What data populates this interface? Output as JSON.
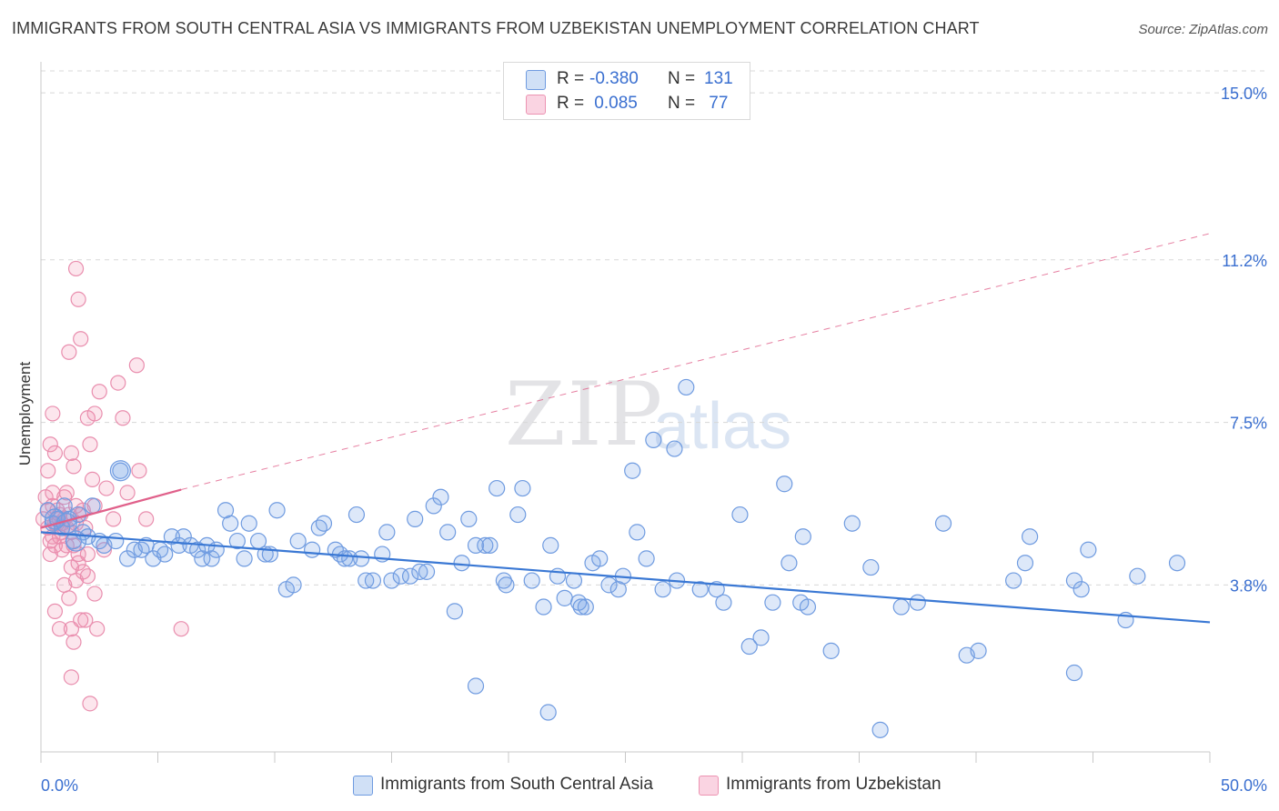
{
  "title": "IMMIGRANTS FROM SOUTH CENTRAL ASIA VS IMMIGRANTS FROM UZBEKISTAN UNEMPLOYMENT CORRELATION CHART",
  "source": "Source: ZipAtlas.com",
  "watermark": {
    "zip": "ZIP",
    "atlas": "atlas"
  },
  "colors": {
    "blue": "#3a78d4",
    "blue_fill": "rgba(120,165,230,0.25)",
    "pink": "#e0608a",
    "pink_fill": "rgba(240,140,175,0.22)",
    "axis_text_blue": "#3a6fd0",
    "grid": "#d8d8d8"
  },
  "legend": {
    "rows": [
      {
        "r_label": "R = ",
        "r_value": "-0.380",
        "n_label": "N = ",
        "n_value": "131"
      },
      {
        "r_label": "R = ",
        "r_value": " 0.085",
        "n_label": "N = ",
        "n_value": " 77"
      }
    ]
  },
  "bottom_legend": [
    "Immigrants from South Central Asia",
    "Immigrants from Uzbekistan"
  ],
  "chart_data": {
    "type": "scatter",
    "title": "IMMIGRANTS FROM SOUTH CENTRAL ASIA VS IMMIGRANTS FROM UZBEKISTAN UNEMPLOYMENT CORRELATION CHART",
    "xlabel": "",
    "ylabel": "Unemployment",
    "xlim": [
      0,
      50
    ],
    "ylim": [
      0.0,
      15.5
    ],
    "x_tick_labels": [
      "0.0%",
      "50.0%"
    ],
    "y_ticks": [
      3.8,
      7.5,
      11.2,
      15.0
    ],
    "y_tick_labels": [
      "3.8%",
      "7.5%",
      "11.2%",
      "15.0%"
    ],
    "grid": true,
    "series": [
      {
        "name": "Immigrants from South Central Asia",
        "color": "blue",
        "R": -0.38,
        "N": 131,
        "trend": {
          "x": [
            0,
            50
          ],
          "y": [
            5.0,
            2.95
          ],
          "style": "solid"
        },
        "points": [
          [
            0.3,
            5.5
          ],
          [
            0.5,
            5.2
          ],
          [
            0.7,
            5.3
          ],
          [
            0.9,
            5.1
          ],
          [
            1.0,
            5.6
          ],
          [
            1.2,
            5.3
          ],
          [
            1.4,
            4.8
          ],
          [
            1.6,
            5.4
          ],
          [
            1.8,
            5.0
          ],
          [
            2.0,
            4.9
          ],
          [
            2.2,
            5.6
          ],
          [
            2.5,
            4.8
          ],
          [
            2.7,
            4.7
          ],
          [
            3.2,
            4.8
          ],
          [
            3.4,
            6.4
          ],
          [
            3.7,
            4.4
          ],
          [
            4.0,
            4.6
          ],
          [
            4.3,
            4.6
          ],
          [
            4.5,
            4.7
          ],
          [
            4.8,
            4.4
          ],
          [
            5.1,
            4.6
          ],
          [
            5.3,
            4.5
          ],
          [
            5.6,
            4.9
          ],
          [
            5.9,
            4.7
          ],
          [
            6.1,
            4.9
          ],
          [
            6.4,
            4.7
          ],
          [
            6.7,
            4.6
          ],
          [
            6.9,
            4.4
          ],
          [
            7.1,
            4.7
          ],
          [
            7.3,
            4.4
          ],
          [
            7.5,
            4.6
          ],
          [
            7.9,
            5.5
          ],
          [
            8.1,
            5.2
          ],
          [
            8.4,
            4.8
          ],
          [
            8.7,
            4.4
          ],
          [
            8.9,
            5.2
          ],
          [
            9.3,
            4.8
          ],
          [
            9.6,
            4.5
          ],
          [
            9.8,
            4.5
          ],
          [
            10.1,
            5.5
          ],
          [
            10.5,
            3.7
          ],
          [
            10.8,
            3.8
          ],
          [
            11.0,
            4.8
          ],
          [
            11.6,
            4.6
          ],
          [
            11.9,
            5.1
          ],
          [
            12.1,
            5.2
          ],
          [
            12.6,
            4.6
          ],
          [
            12.8,
            4.5
          ],
          [
            13.0,
            4.4
          ],
          [
            13.2,
            4.4
          ],
          [
            13.5,
            5.4
          ],
          [
            13.7,
            4.4
          ],
          [
            13.9,
            3.9
          ],
          [
            14.2,
            3.9
          ],
          [
            14.6,
            4.5
          ],
          [
            14.8,
            5.0
          ],
          [
            15.0,
            3.9
          ],
          [
            15.4,
            4.0
          ],
          [
            15.8,
            4.0
          ],
          [
            16.0,
            5.3
          ],
          [
            16.2,
            4.1
          ],
          [
            16.5,
            4.1
          ],
          [
            16.8,
            5.6
          ],
          [
            17.1,
            5.8
          ],
          [
            17.4,
            5.0
          ],
          [
            17.7,
            3.2
          ],
          [
            18.0,
            4.3
          ],
          [
            18.3,
            5.3
          ],
          [
            18.6,
            4.7
          ],
          [
            19.0,
            4.7
          ],
          [
            19.2,
            4.7
          ],
          [
            19.5,
            6.0
          ],
          [
            19.8,
            3.9
          ],
          [
            19.9,
            3.8
          ],
          [
            20.4,
            5.4
          ],
          [
            20.6,
            6.0
          ],
          [
            21.0,
            3.9
          ],
          [
            21.5,
            3.3
          ],
          [
            21.8,
            4.7
          ],
          [
            22.1,
            4.0
          ],
          [
            22.4,
            3.5
          ],
          [
            22.8,
            3.9
          ],
          [
            23.0,
            3.4
          ],
          [
            23.3,
            3.3
          ],
          [
            23.6,
            4.3
          ],
          [
            23.9,
            4.4
          ],
          [
            24.3,
            3.8
          ],
          [
            24.7,
            3.7
          ],
          [
            24.9,
            4.0
          ],
          [
            25.3,
            6.4
          ],
          [
            25.5,
            5.0
          ],
          [
            25.9,
            4.4
          ],
          [
            26.2,
            7.1
          ],
          [
            26.6,
            3.7
          ],
          [
            27.1,
            6.9
          ],
          [
            27.2,
            3.9
          ],
          [
            27.6,
            8.3
          ],
          [
            28.2,
            3.7
          ],
          [
            28.9,
            3.7
          ],
          [
            29.2,
            3.4
          ],
          [
            29.9,
            5.4
          ],
          [
            30.3,
            2.4
          ],
          [
            30.8,
            2.6
          ],
          [
            31.3,
            3.4
          ],
          [
            31.8,
            6.1
          ],
          [
            32.0,
            4.3
          ],
          [
            32.5,
            3.4
          ],
          [
            32.6,
            4.9
          ],
          [
            32.8,
            3.3
          ],
          [
            33.8,
            2.3
          ],
          [
            34.7,
            5.2
          ],
          [
            35.5,
            4.2
          ],
          [
            35.9,
            0.5
          ],
          [
            36.8,
            3.3
          ],
          [
            37.5,
            3.4
          ],
          [
            38.6,
            5.2
          ],
          [
            39.6,
            2.2
          ],
          [
            40.1,
            2.3
          ],
          [
            41.6,
            3.9
          ],
          [
            42.1,
            4.3
          ],
          [
            42.3,
            4.9
          ],
          [
            44.2,
            3.9
          ],
          [
            44.5,
            3.7
          ],
          [
            44.8,
            4.6
          ],
          [
            44.2,
            1.8
          ],
          [
            46.4,
            3.0
          ],
          [
            46.9,
            4.0
          ],
          [
            48.6,
            4.3
          ],
          [
            18.6,
            1.5
          ],
          [
            21.7,
            0.9
          ],
          [
            23.1,
            3.3
          ]
        ]
      },
      {
        "name": "Immigrants from Uzbekistan",
        "color": "pink",
        "R": 0.085,
        "N": 77,
        "trend": {
          "x_solid": [
            0,
            6.0
          ],
          "y_solid": [
            5.1,
            5.97
          ],
          "x_dashed": [
            6.0,
            50
          ],
          "y_dashed": [
            5.97,
            11.8
          ],
          "style": "solid then dashed"
        },
        "points": [
          [
            0.1,
            5.3
          ],
          [
            0.2,
            5.8
          ],
          [
            0.3,
            5.1
          ],
          [
            0.3,
            5.5
          ],
          [
            0.4,
            4.8
          ],
          [
            0.4,
            4.5
          ],
          [
            0.5,
            5.6
          ],
          [
            0.5,
            4.9
          ],
          [
            0.6,
            5.2
          ],
          [
            0.6,
            4.7
          ],
          [
            0.7,
            5.5
          ],
          [
            0.7,
            5.2
          ],
          [
            0.8,
            4.9
          ],
          [
            0.8,
            5.4
          ],
          [
            0.9,
            5.0
          ],
          [
            0.9,
            4.6
          ],
          [
            1.0,
            5.3
          ],
          [
            1.0,
            5.8
          ],
          [
            1.1,
            4.7
          ],
          [
            1.1,
            5.1
          ],
          [
            1.2,
            5.4
          ],
          [
            1.3,
            5.0
          ],
          [
            1.3,
            4.2
          ],
          [
            1.4,
            4.7
          ],
          [
            1.5,
            5.2
          ],
          [
            1.5,
            5.6
          ],
          [
            1.6,
            4.3
          ],
          [
            1.7,
            5.4
          ],
          [
            1.8,
            4.1
          ],
          [
            1.9,
            5.1
          ],
          [
            2.0,
            4.0
          ],
          [
            2.0,
            4.5
          ],
          [
            0.3,
            6.4
          ],
          [
            0.4,
            7.0
          ],
          [
            0.5,
            7.7
          ],
          [
            0.6,
            6.8
          ],
          [
            1.2,
            9.1
          ],
          [
            1.3,
            6.8
          ],
          [
            1.4,
            6.5
          ],
          [
            1.5,
            11.0
          ],
          [
            1.6,
            10.3
          ],
          [
            1.7,
            9.4
          ],
          [
            2.0,
            7.6
          ],
          [
            2.1,
            7.0
          ],
          [
            2.2,
            6.2
          ],
          [
            2.3,
            5.6
          ],
          [
            2.3,
            7.7
          ],
          [
            2.5,
            8.2
          ],
          [
            2.7,
            4.6
          ],
          [
            2.8,
            6.0
          ],
          [
            3.1,
            5.3
          ],
          [
            3.3,
            8.4
          ],
          [
            3.5,
            7.6
          ],
          [
            3.7,
            5.9
          ],
          [
            4.1,
            8.8
          ],
          [
            4.2,
            6.4
          ],
          [
            4.5,
            5.3
          ],
          [
            0.6,
            3.2
          ],
          [
            0.8,
            2.8
          ],
          [
            1.0,
            3.8
          ],
          [
            1.2,
            3.5
          ],
          [
            1.3,
            2.8
          ],
          [
            1.4,
            2.5
          ],
          [
            1.5,
            3.9
          ],
          [
            1.7,
            3.0
          ],
          [
            1.9,
            3.0
          ],
          [
            2.3,
            3.6
          ],
          [
            2.4,
            2.8
          ],
          [
            1.3,
            1.7
          ],
          [
            2.1,
            1.1
          ],
          [
            6.0,
            2.8
          ],
          [
            0.5,
            5.9
          ],
          [
            0.8,
            5.3
          ],
          [
            1.1,
            5.9
          ],
          [
            1.6,
            4.5
          ],
          [
            0.9,
            5.2
          ],
          [
            1.8,
            5.5
          ]
        ]
      }
    ]
  }
}
